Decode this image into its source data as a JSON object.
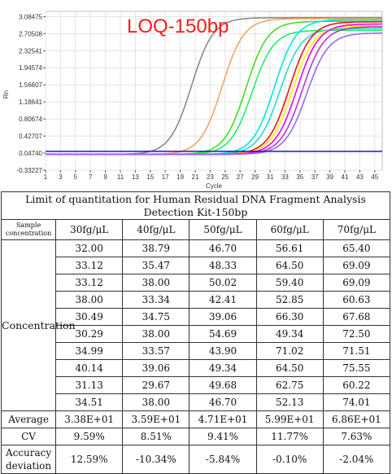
{
  "chart_data": {
    "type": "line",
    "title": "LOQ-150bp",
    "xlabel": "Cycle",
    "ylabel": "Rn",
    "xlim": [
      1,
      46
    ],
    "ylim": [
      -0.33227,
      3.2
    ],
    "x_ticks": [
      "1",
      "3",
      "5",
      "7",
      "9",
      "11",
      "13",
      "15",
      "17",
      "19",
      "21",
      "23",
      "25",
      "27",
      "29",
      "31",
      "33",
      "35",
      "37",
      "39",
      "41",
      "43",
      "45"
    ],
    "y_ticks": [
      "3.08475",
      "2.70508",
      "2.32541",
      "1.94574",
      "1.56607",
      "1.18641",
      "0.80674",
      "0.42707",
      "0.04740",
      "-0.33227"
    ],
    "threshold": 0.09,
    "grid": true,
    "series": [
      {
        "color": "#8a8a8a",
        "ct": 20.5,
        "plateau": 3.06
      },
      {
        "color": "#f4a460",
        "ct": 24.6,
        "plateau": 3.04
      },
      {
        "color": "#44dd22",
        "ct": 27.8,
        "plateau": 2.98
      },
      {
        "color": "#22ee66",
        "ct": 28.6,
        "plateau": 2.78
      },
      {
        "color": "#00e5ee",
        "ct": 31.6,
        "plateau": 3.02
      },
      {
        "color": "#22ddcc",
        "ct": 32.3,
        "plateau": 2.82
      },
      {
        "color": "#ee1111",
        "ct": 33.6,
        "plateau": 2.97
      },
      {
        "color": "#ffee00",
        "ct": 34.0,
        "plateau": 2.88
      },
      {
        "color": "#ee00ee",
        "ct": 34.6,
        "plateau": 2.92
      },
      {
        "color": "#bb33cc",
        "ct": 35.3,
        "plateau": 2.86
      },
      {
        "color": "#9966ff",
        "ct": 35.9,
        "plateau": 2.72
      }
    ]
  },
  "table": {
    "caption": "Limit of quantitation for Human Residual DNA Fragment Analysis Detection Kit-150bp",
    "header_label": "Sample concentration",
    "concentrations": [
      "30fg/μL",
      "40fg/μL",
      "50fg/μL",
      "60fg/μL",
      "70fg/μL"
    ],
    "row_label": "Concentration",
    "rows": [
      [
        "32.00",
        "38.79",
        "46.70",
        "56.61",
        "65.40"
      ],
      [
        "33.12",
        "35.47",
        "48.33",
        "64.50",
        "69.09"
      ],
      [
        "33.12",
        "38.00",
        "50.02",
        "59.40",
        "69.09"
      ],
      [
        "38.00",
        "33.34",
        "42.41",
        "52.85",
        "60.63"
      ],
      [
        "30.49",
        "34.75",
        "39.06",
        "66.30",
        "67.68"
      ],
      [
        "30.29",
        "38.00",
        "54.69",
        "49.34",
        "72.50"
      ],
      [
        "34.99",
        "33.57",
        "43.90",
        "71.02",
        "71.51"
      ],
      [
        "40.14",
        "39.06",
        "49.34",
        "64.50",
        "75.55"
      ],
      [
        "31.13",
        "29.67",
        "49.68",
        "62.75",
        "60.22"
      ],
      [
        "34.51",
        "38.00",
        "46.70",
        "52.13",
        "74.01"
      ]
    ],
    "average_label": "Average",
    "average": [
      "3.38E+01",
      "3.59E+01",
      "4.71E+01",
      "5.99E+01",
      "6.86E+01"
    ],
    "cv_label": "CV",
    "cv": [
      "9.59%",
      "8.51%",
      "9.41%",
      "11.77%",
      "7.63%"
    ],
    "accuracy_label": "Accuracy deviation",
    "accuracy": [
      "12.59%",
      "-10.34%",
      "-5.84%",
      "-0.10%",
      "-2.04%"
    ]
  }
}
